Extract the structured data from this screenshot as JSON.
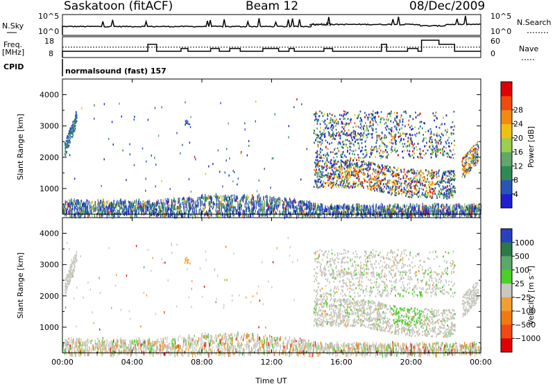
{
  "header": {
    "title": "Saskatoon (fitACF)",
    "beam": "Beam 12",
    "date": "08/Dec/2009"
  },
  "top_panels": {
    "nsky_label": "N.Sky",
    "nsky_ticks": [
      "10^5",
      "10^0"
    ],
    "nsearch_label": "N.Search",
    "freq_label_1": "Freq.",
    "freq_label_2": "[MHz]",
    "freq_ticks": [
      "18",
      "8"
    ],
    "nave_label": "Nave",
    "nave_ticks": [
      "60",
      "0"
    ],
    "cpid_label": "CPID",
    "cpid_text": "normalsound (fast) 157"
  },
  "colors": {
    "power": [
      "#1f1fd0",
      "#2a55b8",
      "#2f8a54",
      "#5fa868",
      "#9acd50",
      "#f0c010",
      "#f08a10",
      "#f04a10",
      "#e00000"
    ],
    "velocity": [
      "#2a40c0",
      "#2a7a48",
      "#5ca868",
      "#4bd02a",
      "#c8c8c0",
      "#f0a030",
      "#f07a10",
      "#f04a10",
      "#e00000"
    ]
  },
  "chart_data": [
    {
      "type": "heatmap",
      "name": "power",
      "ylabel": "Slant Range [km]",
      "xlabel": "",
      "ylim": [
        180,
        4500
      ],
      "yticks": [
        1000,
        2000,
        3000,
        4000
      ],
      "colorbar_label": "Power [dB]",
      "colorbar_ticks": [
        "4",
        "8",
        "12",
        "16",
        "20",
        "24",
        "28"
      ],
      "x_ticks": [
        "00:00",
        "04:00",
        "08:00",
        "12:00",
        "16:00",
        "20:00",
        "00:00"
      ]
    },
    {
      "type": "heatmap",
      "name": "velocity",
      "ylabel": "Slant Range [km]",
      "xlabel": "Time UT",
      "ylim": [
        180,
        4500
      ],
      "yticks": [
        1000,
        2000,
        3000,
        4000
      ],
      "colorbar_label": "Velocity [m s⁻¹]",
      "colorbar_ticks": [
        "1000",
        "500",
        "100",
        "25",
        "−25",
        "−100",
        "−500",
        "−1000"
      ],
      "x_ticks": [
        "00:00",
        "04:00",
        "08:00",
        "12:00",
        "16:00",
        "20:00",
        "00:00"
      ]
    }
  ]
}
